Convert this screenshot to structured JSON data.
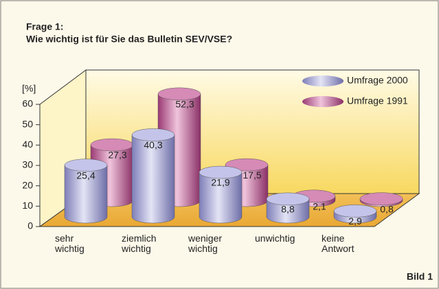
{
  "chart_data": {
    "type": "bar3d",
    "title": "Frage 1:",
    "subtitle": "Wie wichtig ist für Sie das Bulletin SEV/VSE?",
    "y_axis_label": "[%]",
    "annotation": "Bild 1",
    "categories": [
      "sehr wichtig",
      "ziemlich wichtig",
      "weniger wichtig",
      "unwichtig",
      "keine Antwort"
    ],
    "series": [
      {
        "name": "Umfrage 2000",
        "color": "#9c9cd4",
        "values": [
          25.4,
          40.3,
          21.9,
          8.8,
          2.9
        ],
        "value_labels": [
          "25,4",
          "40,3",
          "21,9",
          "8,8",
          "2,9"
        ]
      },
      {
        "name": "Umfrage 1991",
        "color": "#b85a92",
        "values": [
          27.3,
          52.3,
          17.5,
          2.1,
          0.8
        ],
        "value_labels": [
          "27,3",
          "52,3",
          "17,5",
          "2,1",
          "0,8"
        ]
      }
    ],
    "ylim": [
      0,
      60
    ],
    "yticks": [
      0,
      10,
      20,
      30,
      40,
      50,
      60
    ],
    "grid": false,
    "legend": "top-right"
  }
}
